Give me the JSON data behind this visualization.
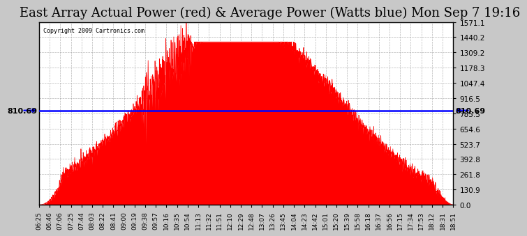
{
  "title": "East Array Actual Power (red) & Average Power (Watts blue) Mon Sep 7 19:16",
  "copyright": "Copyright 2009 Cartronics.com",
  "avg_line_y": 810.69,
  "avg_label": "810.69",
  "ymax": 1571.1,
  "ymin": 0.0,
  "yticks": [
    0.0,
    130.9,
    261.8,
    392.8,
    523.7,
    654.6,
    785.5,
    916.5,
    1047.4,
    1178.3,
    1309.2,
    1440.2,
    1571.1
  ],
  "bg_color": "#c8c8c8",
  "plot_bg_color": "#ffffff",
  "fill_color": "#ff0000",
  "line_color": "#0000ff",
  "grid_color": "#999999",
  "title_fontsize": 13,
  "xtick_labels": [
    "06:25",
    "06:46",
    "07:06",
    "07:25",
    "07:44",
    "08:03",
    "08:22",
    "08:41",
    "09:00",
    "09:19",
    "09:38",
    "09:57",
    "10:16",
    "10:35",
    "10:54",
    "11:13",
    "11:32",
    "11:51",
    "12:10",
    "12:29",
    "12:48",
    "13:07",
    "13:26",
    "13:45",
    "14:04",
    "14:23",
    "14:42",
    "15:01",
    "15:20",
    "15:39",
    "15:58",
    "16:18",
    "16:37",
    "16:56",
    "17:15",
    "17:34",
    "17:53",
    "18:12",
    "18:31",
    "18:51"
  ]
}
